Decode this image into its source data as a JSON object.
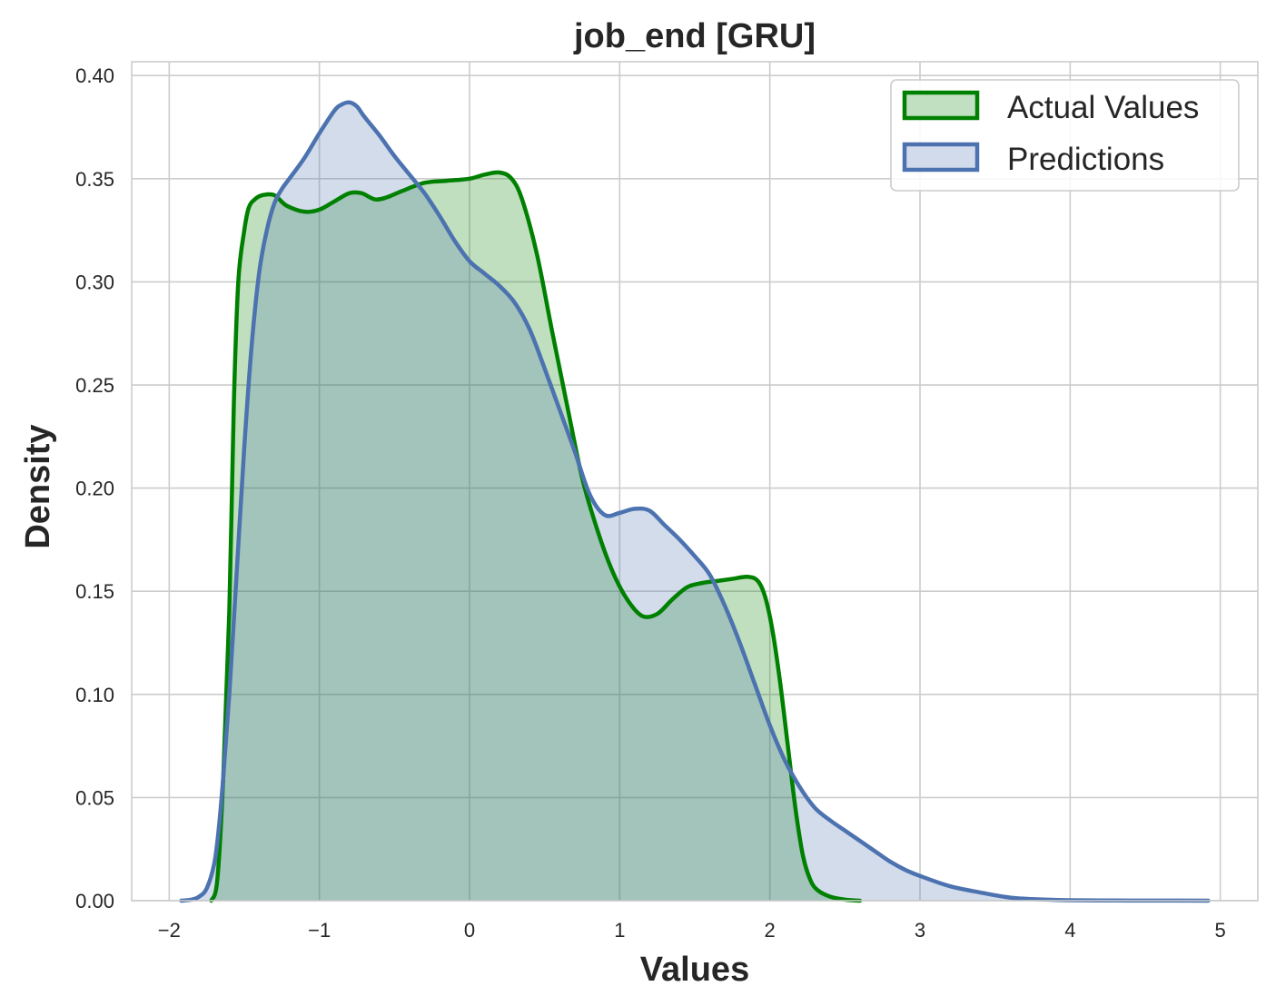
{
  "chart_data": {
    "type": "area",
    "title": "job_end [GRU]",
    "xlabel": "Values",
    "ylabel": "Density",
    "xlim": [
      -2.25,
      5.25
    ],
    "ylim": [
      0,
      0.4067
    ],
    "x_ticks": [
      -2,
      -1,
      0,
      1,
      2,
      3,
      4,
      5
    ],
    "x_tick_labels": [
      "−2",
      "−1",
      "0",
      "1",
      "2",
      "3",
      "4",
      "5"
    ],
    "y_ticks": [
      0.0,
      0.05,
      0.1,
      0.15,
      0.2,
      0.25,
      0.3,
      0.35,
      0.4
    ],
    "y_tick_labels": [
      "0.00",
      "0.05",
      "0.10",
      "0.15",
      "0.20",
      "0.25",
      "0.30",
      "0.35",
      "0.40"
    ],
    "grid": true,
    "legend": {
      "position": "top-right"
    },
    "series": [
      {
        "name": "Actual Values",
        "color": "#008000",
        "fill": "#c1e0c1",
        "x": [
          -1.72,
          -1.68,
          -1.64,
          -1.6,
          -1.57,
          -1.54,
          -1.5,
          -1.47,
          -1.43,
          -1.38,
          -1.3,
          -1.22,
          -1.1,
          -1.0,
          -0.9,
          -0.8,
          -0.72,
          -0.63,
          -0.55,
          -0.45,
          -0.3,
          -0.15,
          0.0,
          0.1,
          0.2,
          0.28,
          0.35,
          0.45,
          0.55,
          0.65,
          0.75,
          0.85,
          0.95,
          1.05,
          1.15,
          1.25,
          1.35,
          1.45,
          1.55,
          1.65,
          1.75,
          1.85,
          1.92,
          1.97,
          2.02,
          2.07,
          2.12,
          2.17,
          2.22,
          2.27,
          2.32,
          2.4,
          2.5,
          2.6
        ],
        "y": [
          0.0,
          0.01,
          0.06,
          0.14,
          0.24,
          0.3,
          0.325,
          0.336,
          0.34,
          0.342,
          0.342,
          0.337,
          0.334,
          0.335,
          0.339,
          0.343,
          0.343,
          0.34,
          0.341,
          0.344,
          0.348,
          0.349,
          0.35,
          0.352,
          0.353,
          0.35,
          0.34,
          0.313,
          0.276,
          0.24,
          0.205,
          0.18,
          0.16,
          0.146,
          0.138,
          0.139,
          0.146,
          0.152,
          0.154,
          0.155,
          0.156,
          0.157,
          0.155,
          0.147,
          0.13,
          0.105,
          0.075,
          0.045,
          0.022,
          0.01,
          0.005,
          0.002,
          0.0005,
          0.0
        ]
      },
      {
        "name": "Predictions",
        "color": "#4c72b0",
        "fill": "#d2dbec",
        "x": [
          -1.92,
          -1.85,
          -1.8,
          -1.75,
          -1.7,
          -1.67,
          -1.64,
          -1.6,
          -1.55,
          -1.5,
          -1.45,
          -1.4,
          -1.35,
          -1.3,
          -1.25,
          -1.2,
          -1.1,
          -1.0,
          -0.9,
          -0.85,
          -0.8,
          -0.75,
          -0.7,
          -0.6,
          -0.5,
          -0.4,
          -0.3,
          -0.2,
          -0.1,
          0.0,
          0.1,
          0.2,
          0.3,
          0.4,
          0.5,
          0.6,
          0.7,
          0.8,
          0.9,
          1.0,
          1.1,
          1.2,
          1.3,
          1.4,
          1.5,
          1.6,
          1.7,
          1.8,
          1.9,
          2.0,
          2.1,
          2.2,
          2.3,
          2.4,
          2.5,
          2.6,
          2.7,
          2.8,
          2.9,
          3.0,
          3.2,
          3.4,
          3.6,
          3.8,
          4.0,
          4.3,
          4.6,
          4.92
        ],
        "y": [
          0.0,
          0.0005,
          0.002,
          0.006,
          0.018,
          0.035,
          0.06,
          0.1,
          0.16,
          0.22,
          0.27,
          0.305,
          0.325,
          0.338,
          0.345,
          0.35,
          0.36,
          0.372,
          0.383,
          0.386,
          0.387,
          0.385,
          0.38,
          0.371,
          0.361,
          0.352,
          0.343,
          0.332,
          0.32,
          0.31,
          0.304,
          0.298,
          0.29,
          0.277,
          0.258,
          0.238,
          0.218,
          0.197,
          0.187,
          0.188,
          0.19,
          0.189,
          0.182,
          0.175,
          0.167,
          0.158,
          0.143,
          0.125,
          0.105,
          0.085,
          0.068,
          0.055,
          0.045,
          0.039,
          0.034,
          0.029,
          0.024,
          0.019,
          0.015,
          0.012,
          0.007,
          0.004,
          0.0015,
          0.0006,
          0.0002,
          0.0001,
          5e-05,
          0.0
        ]
      }
    ]
  }
}
